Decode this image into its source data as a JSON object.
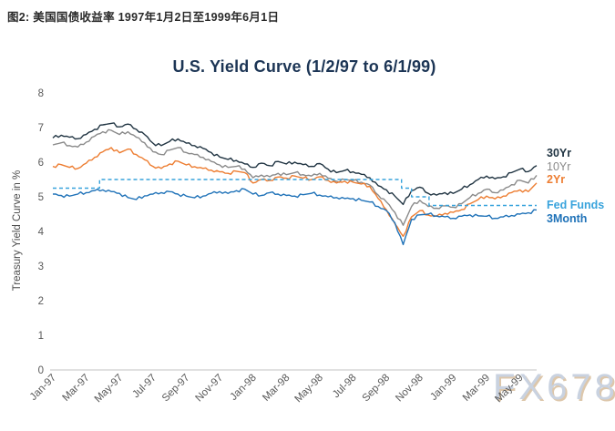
{
  "figure": {
    "caption": "图2: 美国国债收益率 1997年1月2日至1999年6月1日"
  },
  "watermark": {
    "text": "FX678"
  },
  "chart_data": {
    "type": "line",
    "title": "U.S. Yield Curve (1/2/97 to 6/1/99)",
    "xlabel": "",
    "ylabel": "Treasury Yield Curve in %",
    "ylim": [
      0,
      8
    ],
    "yticks": [
      0,
      1,
      2,
      3,
      4,
      5,
      6,
      7,
      8
    ],
    "grid": false,
    "legend_position": "right-of-line-ends",
    "x_unit": "months since Jan-1997, samples every 0.5 month (index 0 = Jan-97, 29 = Jun-99)",
    "x_step": 0.5,
    "x_max": 29,
    "xtick_labels": [
      "Jan-97",
      "Mar-97",
      "May-97",
      "Jul-97",
      "Sep-97",
      "Nov-97",
      "Jan-98",
      "Mar-98",
      "May-98",
      "Jul-98",
      "Sep-98",
      "Nov-98",
      "Jan-99",
      "Mar-99",
      "May-99"
    ],
    "xtick_month_index": [
      0,
      2,
      4,
      6,
      8,
      10,
      12,
      14,
      16,
      18,
      20,
      22,
      24,
      26,
      28
    ],
    "series": [
      {
        "name": "30Yr",
        "color": "#203442",
        "style": "solid",
        "bold_label": true,
        "values": [
          6.7,
          6.78,
          6.72,
          6.68,
          6.8,
          6.95,
          7.08,
          7.12,
          7.02,
          7.1,
          6.95,
          6.8,
          6.55,
          6.48,
          6.6,
          6.67,
          6.55,
          6.48,
          6.4,
          6.28,
          6.15,
          6.08,
          6.05,
          5.95,
          5.85,
          5.97,
          5.9,
          6.02,
          5.95,
          6.0,
          5.93,
          5.88,
          5.96,
          5.8,
          5.7,
          5.76,
          5.72,
          5.65,
          5.55,
          5.32,
          5.2,
          5.02,
          4.78,
          5.18,
          5.28,
          5.1,
          5.05,
          5.12,
          5.1,
          5.22,
          5.35,
          5.5,
          5.6,
          5.52,
          5.58,
          5.7,
          5.8,
          5.73,
          5.9
        ]
      },
      {
        "name": "10Yr",
        "color": "#8a8a8a",
        "style": "solid",
        "bold_label": false,
        "values": [
          6.5,
          6.56,
          6.48,
          6.44,
          6.58,
          6.75,
          6.88,
          6.92,
          6.8,
          6.88,
          6.72,
          6.56,
          6.3,
          6.22,
          6.35,
          6.42,
          6.28,
          6.22,
          6.14,
          6.02,
          5.92,
          5.85,
          5.88,
          5.8,
          5.55,
          5.63,
          5.58,
          5.68,
          5.64,
          5.7,
          5.64,
          5.6,
          5.68,
          5.54,
          5.45,
          5.5,
          5.47,
          5.42,
          5.34,
          5.05,
          4.85,
          4.55,
          4.18,
          4.72,
          4.9,
          4.72,
          4.67,
          4.74,
          4.7,
          4.8,
          4.98,
          5.1,
          5.22,
          5.12,
          5.2,
          5.35,
          5.48,
          5.4,
          5.62
        ]
      },
      {
        "name": "2Yr",
        "color": "#ed7d31",
        "style": "solid",
        "bold_label": true,
        "values": [
          5.88,
          5.93,
          5.85,
          5.82,
          5.97,
          6.14,
          6.3,
          6.42,
          6.27,
          6.38,
          6.22,
          6.07,
          5.88,
          5.82,
          5.95,
          6.03,
          5.92,
          5.87,
          5.82,
          5.77,
          5.72,
          5.68,
          5.74,
          5.7,
          5.4,
          5.5,
          5.47,
          5.57,
          5.54,
          5.6,
          5.54,
          5.5,
          5.58,
          5.47,
          5.4,
          5.45,
          5.42,
          5.37,
          5.3,
          4.95,
          4.62,
          4.22,
          3.86,
          4.42,
          4.6,
          4.47,
          4.44,
          4.52,
          4.55,
          4.63,
          4.8,
          4.92,
          5.02,
          4.94,
          5.02,
          5.12,
          5.2,
          5.15,
          5.4
        ]
      },
      {
        "name": "3Month",
        "color": "#1f72b8",
        "style": "solid",
        "bold_label": true,
        "values": [
          5.08,
          5.04,
          5.02,
          5.08,
          5.12,
          5.18,
          5.2,
          5.15,
          5.1,
          4.98,
          4.92,
          5.03,
          5.08,
          5.12,
          5.15,
          5.08,
          5.02,
          4.97,
          5.02,
          5.1,
          5.15,
          5.1,
          5.18,
          5.22,
          5.08,
          5.04,
          5.12,
          5.08,
          5.04,
          5.02,
          5.06,
          5.1,
          5.05,
          5.0,
          4.98,
          4.95,
          4.95,
          4.9,
          4.85,
          4.72,
          4.6,
          4.25,
          3.62,
          4.35,
          4.48,
          4.5,
          4.45,
          4.42,
          4.38,
          4.44,
          4.48,
          4.45,
          4.44,
          4.38,
          4.42,
          4.46,
          4.5,
          4.54,
          4.62
        ]
      },
      {
        "name": "Fed Funds",
        "color": "#38a3dc",
        "style": "dashed",
        "bold_label": true,
        "points": [
          [
            0,
            5.25
          ],
          [
            2.8,
            5.25
          ],
          [
            2.8,
            5.5
          ],
          [
            20.9,
            5.5
          ],
          [
            20.9,
            5.25
          ],
          [
            21.5,
            5.25
          ],
          [
            21.5,
            5.0
          ],
          [
            22.55,
            5.0
          ],
          [
            22.55,
            4.75
          ],
          [
            29,
            4.75
          ]
        ]
      }
    ]
  }
}
